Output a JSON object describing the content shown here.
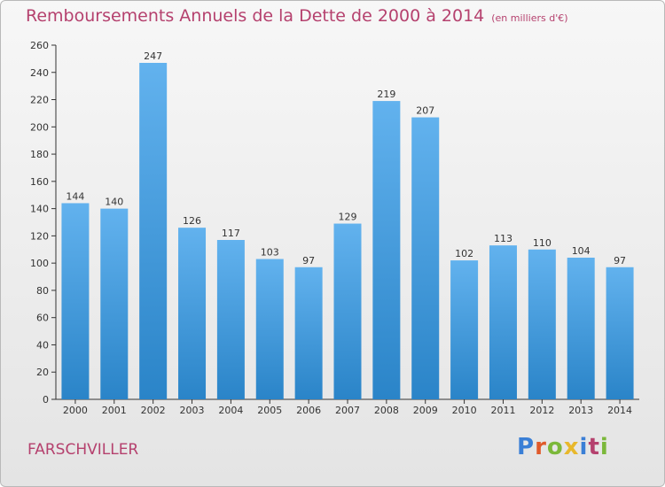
{
  "town": "FARSCHVILLER",
  "logo": {
    "text": "Proxiti",
    "colors": [
      "#3a7fd6",
      "#e05a2b",
      "#7bb83a",
      "#e8b82c",
      "#3a7fd6",
      "#b5416e",
      "#7bb83a"
    ]
  },
  "colors": {
    "title": "#b5416e",
    "bar_top": "#62b2ee",
    "bar_bottom": "#2a84c8",
    "axis": "#333333"
  },
  "chart_data": {
    "type": "bar",
    "title": "Remboursements Annuels de la Dette de 2000 à 2014",
    "subtitle": "(en milliers d'€)",
    "xlabel": "",
    "ylabel": "",
    "categories": [
      "2000",
      "2001",
      "2002",
      "2003",
      "2004",
      "2005",
      "2006",
      "2007",
      "2008",
      "2009",
      "2010",
      "2011",
      "2012",
      "2013",
      "2014"
    ],
    "values": [
      144,
      140,
      247,
      126,
      117,
      103,
      97,
      129,
      219,
      207,
      102,
      113,
      110,
      104,
      97
    ],
    "ylim": [
      0,
      260
    ],
    "yticks": [
      0,
      20,
      40,
      60,
      80,
      100,
      120,
      140,
      160,
      180,
      200,
      220,
      240,
      260
    ],
    "grid": false,
    "legend": "none"
  }
}
